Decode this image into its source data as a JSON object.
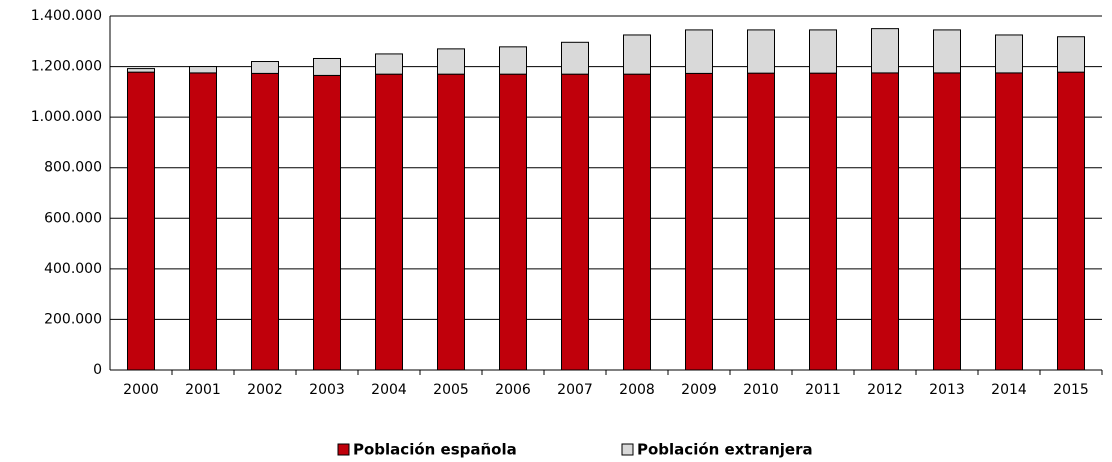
{
  "chart_data": {
    "type": "stacked_bar",
    "categories": [
      "2000",
      "2001",
      "2002",
      "2003",
      "2004",
      "2005",
      "2006",
      "2007",
      "2008",
      "2009",
      "2010",
      "2011",
      "2012",
      "2013",
      "2014",
      "2015"
    ],
    "series": [
      {
        "name": "Población española",
        "color": "#c0000b",
        "values": [
          1178000,
          1175000,
          1173000,
          1165000,
          1170000,
          1170000,
          1170000,
          1170000,
          1170000,
          1173000,
          1174000,
          1174000,
          1175000,
          1175000,
          1175000,
          1178000
        ]
      },
      {
        "name": "Población extranjera",
        "color": "#d9d9d9",
        "values": [
          14000,
          25000,
          47000,
          67000,
          80000,
          100000,
          108000,
          126000,
          155000,
          172000,
          171000,
          171000,
          175000,
          170000,
          150000,
          140000
        ]
      }
    ],
    "ylim": [
      0,
      1400000
    ],
    "yticks": [
      0,
      {
        "value": 200000,
        "label": "200.000"
      },
      {
        "value": 400000,
        "label": "400.000"
      },
      {
        "value": 600000,
        "label": "600.000"
      },
      {
        "value": 800000,
        "label": "800.000"
      },
      {
        "value": 1000000,
        "label": "1.000.000"
      },
      {
        "value": 1200000,
        "label": "1.200.000"
      },
      {
        "value": 1400000,
        "label": "1.400.000"
      }
    ],
    "grid": true,
    "legend": "bottom"
  }
}
